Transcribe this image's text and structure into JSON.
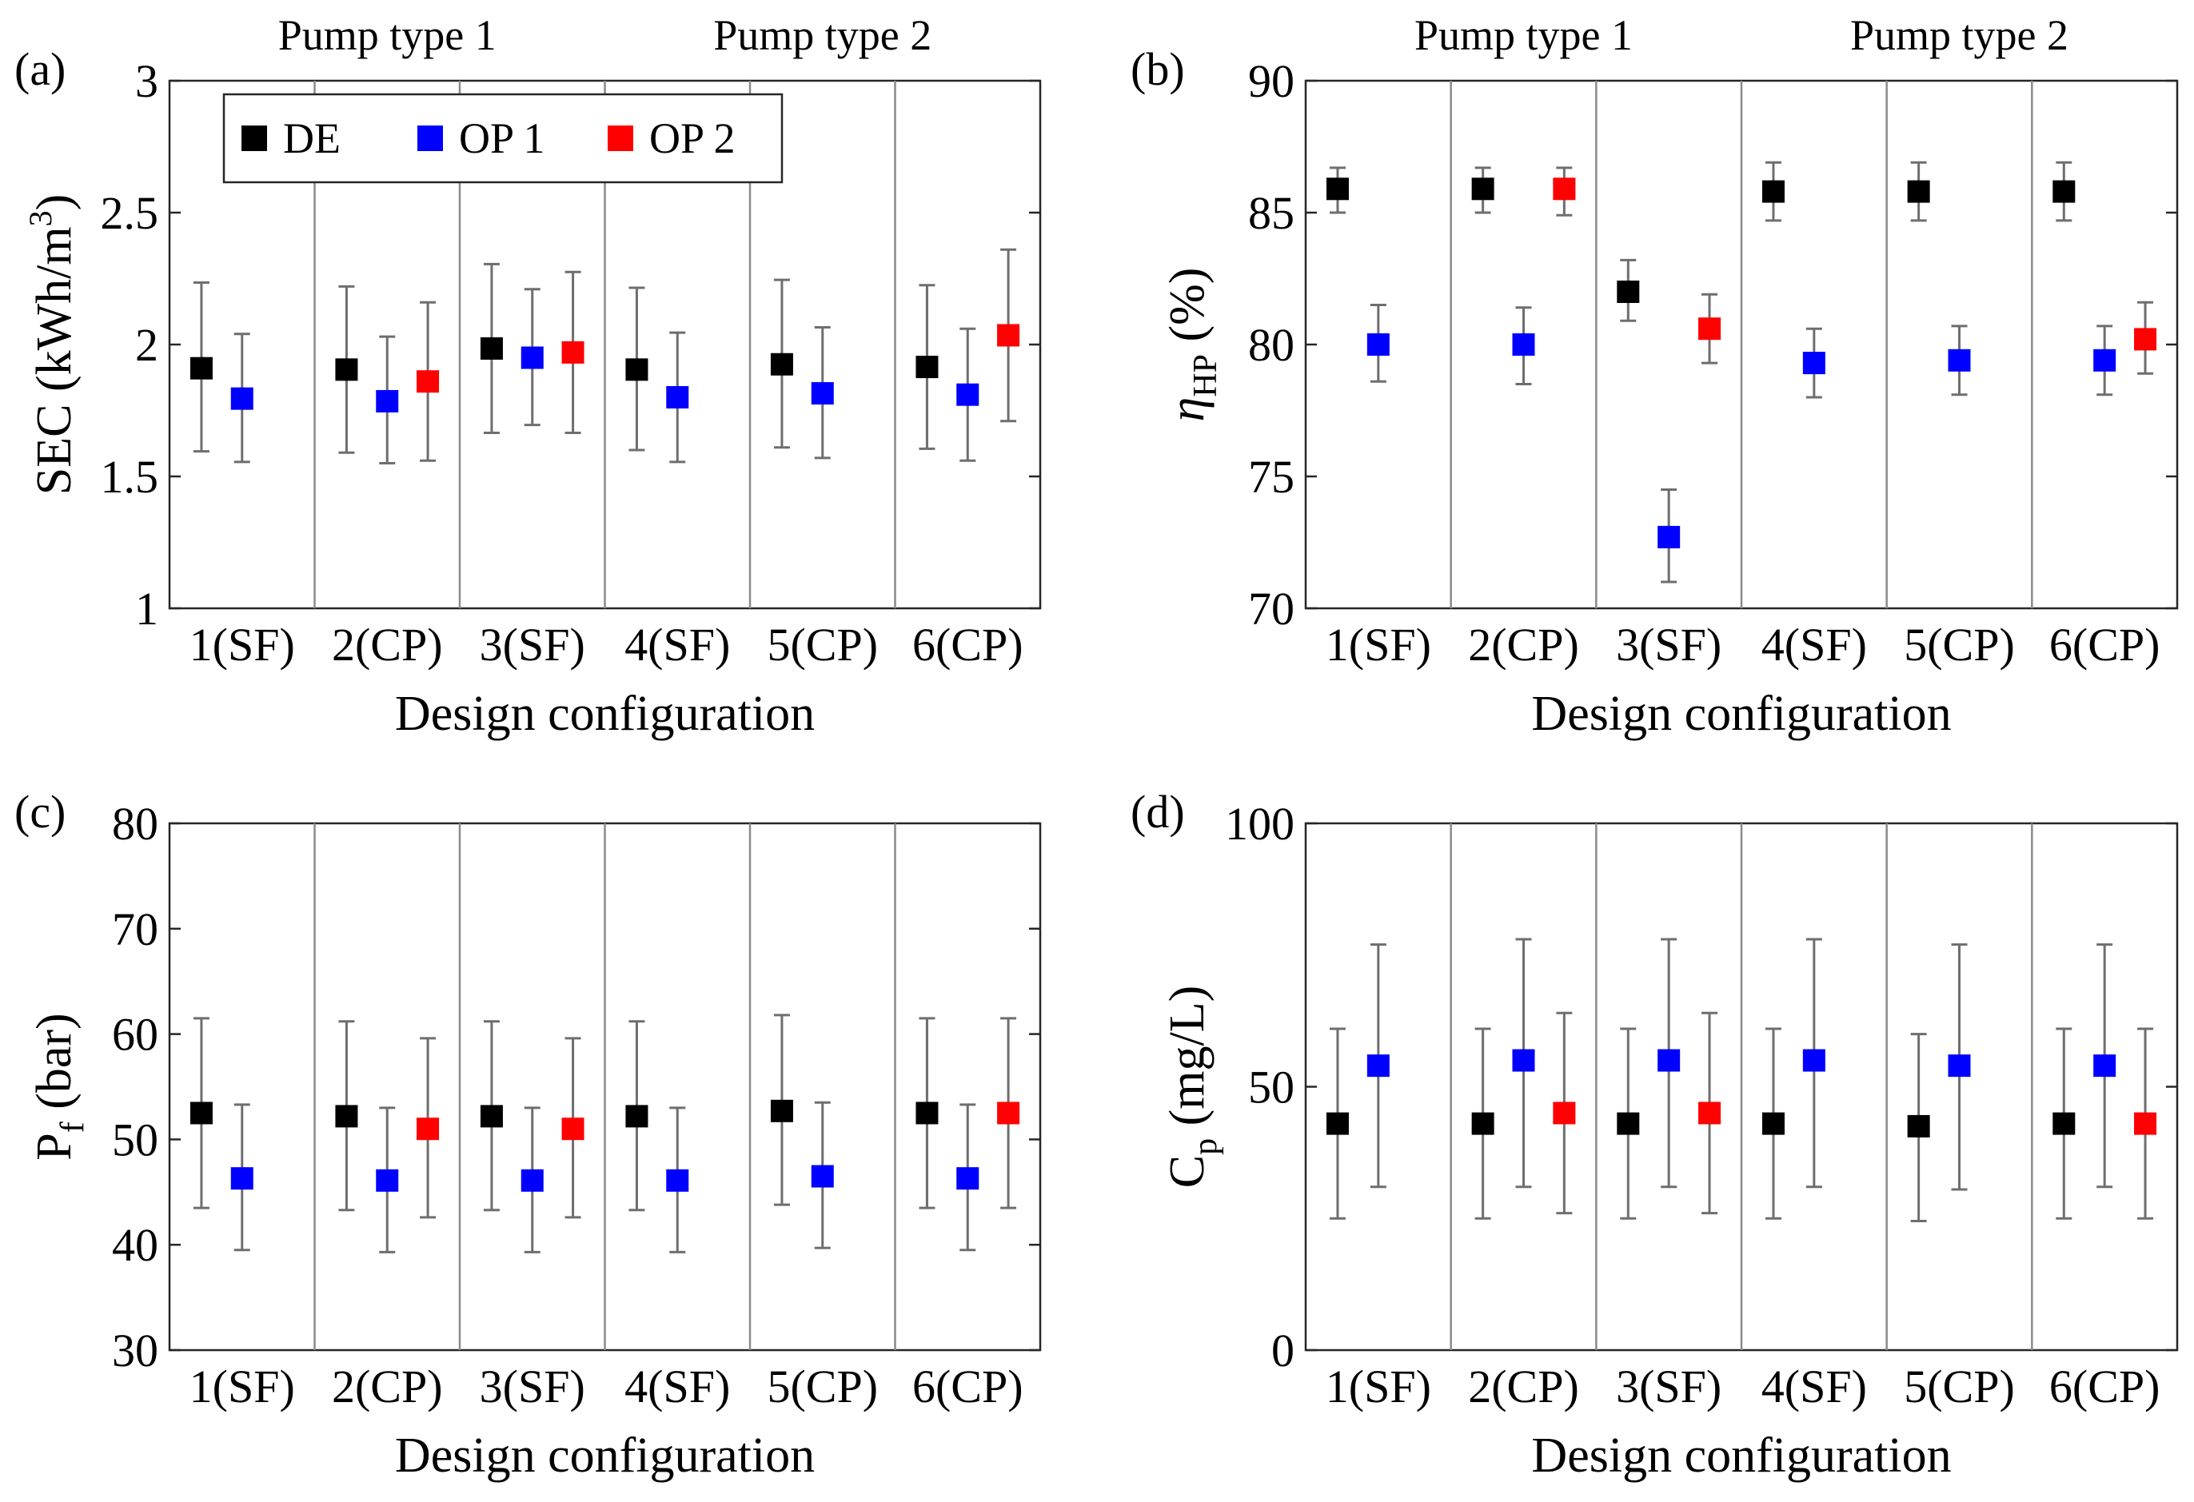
{
  "colors": {
    "DE": "#000000",
    "OP 1": "#0000ff",
    "OP 2": "#ff0000"
  },
  "legend": {
    "entries": [
      "DE",
      "OP 1",
      "OP 2"
    ]
  },
  "group_labels": [
    "Pump type 1",
    "Pump type 2"
  ],
  "chart_data": [
    {
      "type": "scatter",
      "panel_label": "(a)",
      "categories": [
        "1(SF)",
        "2(CP)",
        "3(SF)",
        "4(SF)",
        "5(CP)",
        "6(CP)"
      ],
      "xlabel": "Design configuration",
      "ylabel_text": "SEC (kWh/m",
      "ylabel_sup": "3",
      "ylabel_tail": ")",
      "ylim": [
        1,
        3
      ],
      "yticks": [
        1,
        1.5,
        2,
        2.5,
        3
      ],
      "ytick_labels": [
        "1",
        "1.5",
        "2",
        "2.5",
        "3"
      ],
      "series": [
        {
          "name": "DE",
          "values": [
            1.91,
            1.905,
            1.985,
            1.905,
            1.925,
            1.915
          ],
          "lower": [
            1.595,
            1.59,
            1.665,
            1.6,
            1.61,
            1.605
          ],
          "upper": [
            2.235,
            2.22,
            2.305,
            2.215,
            2.245,
            2.225
          ]
        },
        {
          "name": "OP 1",
          "values": [
            1.795,
            1.785,
            1.95,
            1.8,
            1.815,
            1.81
          ],
          "lower": [
            1.555,
            1.55,
            1.695,
            1.555,
            1.57,
            1.56
          ],
          "upper": [
            2.04,
            2.03,
            2.21,
            2.045,
            2.065,
            2.06
          ]
        },
        {
          "name": "OP 2",
          "values": [
            null,
            1.86,
            1.97,
            null,
            null,
            2.035
          ],
          "lower": [
            null,
            1.56,
            1.665,
            null,
            null,
            1.71
          ],
          "upper": [
            null,
            2.16,
            2.275,
            null,
            null,
            2.36
          ]
        }
      ]
    },
    {
      "type": "scatter",
      "panel_label": "(b)",
      "categories": [
        "1(SF)",
        "2(CP)",
        "3(SF)",
        "4(SF)",
        "5(CP)",
        "6(CP)"
      ],
      "xlabel": "Design configuration",
      "ylabel_text": "η",
      "ylabel_sub": "HP",
      "ylabel_tail": " (%)",
      "ylim": [
        70,
        90
      ],
      "yticks": [
        70,
        75,
        80,
        85,
        90
      ],
      "ytick_labels": [
        "70",
        "75",
        "80",
        "85",
        "90"
      ],
      "series": [
        {
          "name": "DE",
          "values": [
            85.9,
            85.9,
            82.0,
            85.8,
            85.8,
            85.8
          ],
          "lower": [
            85.0,
            85.0,
            80.9,
            84.7,
            84.7,
            84.7
          ],
          "upper": [
            86.7,
            86.7,
            83.2,
            86.9,
            86.9,
            86.9
          ]
        },
        {
          "name": "OP 1",
          "values": [
            80.0,
            80.0,
            72.7,
            79.3,
            79.4,
            79.4
          ],
          "lower": [
            78.6,
            78.5,
            71.0,
            78.0,
            78.1,
            78.1
          ],
          "upper": [
            81.5,
            81.4,
            74.5,
            80.6,
            80.7,
            80.7
          ]
        },
        {
          "name": "OP 2",
          "values": [
            null,
            85.9,
            80.6,
            null,
            null,
            80.2
          ],
          "lower": [
            null,
            84.9,
            79.3,
            null,
            null,
            78.9
          ],
          "upper": [
            null,
            86.7,
            81.9,
            null,
            null,
            81.6
          ]
        }
      ]
    },
    {
      "type": "scatter",
      "panel_label": "(c)",
      "categories": [
        "1(SF)",
        "2(CP)",
        "3(SF)",
        "4(SF)",
        "5(CP)",
        "6(CP)"
      ],
      "xlabel": "Design configuration",
      "ylabel_text": "P",
      "ylabel_sub": "f",
      "ylabel_tail": " (bar)",
      "ylim": [
        30,
        80
      ],
      "yticks": [
        30,
        40,
        50,
        60,
        70,
        80
      ],
      "ytick_labels": [
        "30",
        "40",
        "50",
        "60",
        "70",
        "80"
      ],
      "series": [
        {
          "name": "DE",
          "values": [
            52.5,
            52.2,
            52.2,
            52.2,
            52.7,
            52.5
          ],
          "lower": [
            43.5,
            43.3,
            43.3,
            43.3,
            43.8,
            43.5
          ],
          "upper": [
            61.5,
            61.2,
            61.2,
            61.2,
            61.8,
            61.5
          ]
        },
        {
          "name": "OP 1",
          "values": [
            46.3,
            46.1,
            46.1,
            46.1,
            46.5,
            46.3
          ],
          "lower": [
            39.5,
            39.3,
            39.3,
            39.3,
            39.7,
            39.5
          ],
          "upper": [
            53.3,
            53.0,
            53.0,
            53.0,
            53.5,
            53.3
          ]
        },
        {
          "name": "OP 2",
          "values": [
            null,
            51.0,
            51.0,
            null,
            null,
            52.5
          ],
          "lower": [
            null,
            42.6,
            42.6,
            null,
            null,
            43.5
          ],
          "upper": [
            null,
            59.6,
            59.6,
            null,
            null,
            61.5
          ]
        }
      ]
    },
    {
      "type": "scatter",
      "panel_label": "(d)",
      "categories": [
        "1(SF)",
        "2(CP)",
        "3(SF)",
        "4(SF)",
        "5(CP)",
        "6(CP)"
      ],
      "xlabel": "Design configuration",
      "ylabel_text": "C",
      "ylabel_sub": "p",
      "ylabel_tail": " (mg/L)",
      "ylim": [
        0,
        100
      ],
      "yticks": [
        0,
        50,
        100
      ],
      "ytick_labels": [
        "0",
        "50",
        "100"
      ],
      "series": [
        {
          "name": "DE",
          "values": [
            43,
            43,
            43,
            43,
            42.5,
            43
          ],
          "lower": [
            25,
            25,
            25,
            25,
            24.5,
            25
          ],
          "upper": [
            61,
            61,
            61,
            61,
            60,
            61
          ]
        },
        {
          "name": "OP 1",
          "values": [
            54,
            55,
            55,
            55,
            54,
            54
          ],
          "lower": [
            31,
            31,
            31,
            31,
            30.5,
            31
          ],
          "upper": [
            77,
            78,
            78,
            78,
            77,
            77
          ]
        },
        {
          "name": "OP 2",
          "values": [
            null,
            45,
            45,
            null,
            null,
            43
          ],
          "lower": [
            null,
            26,
            26,
            null,
            null,
            25
          ],
          "upper": [
            null,
            64,
            64,
            null,
            null,
            61
          ]
        }
      ]
    }
  ]
}
